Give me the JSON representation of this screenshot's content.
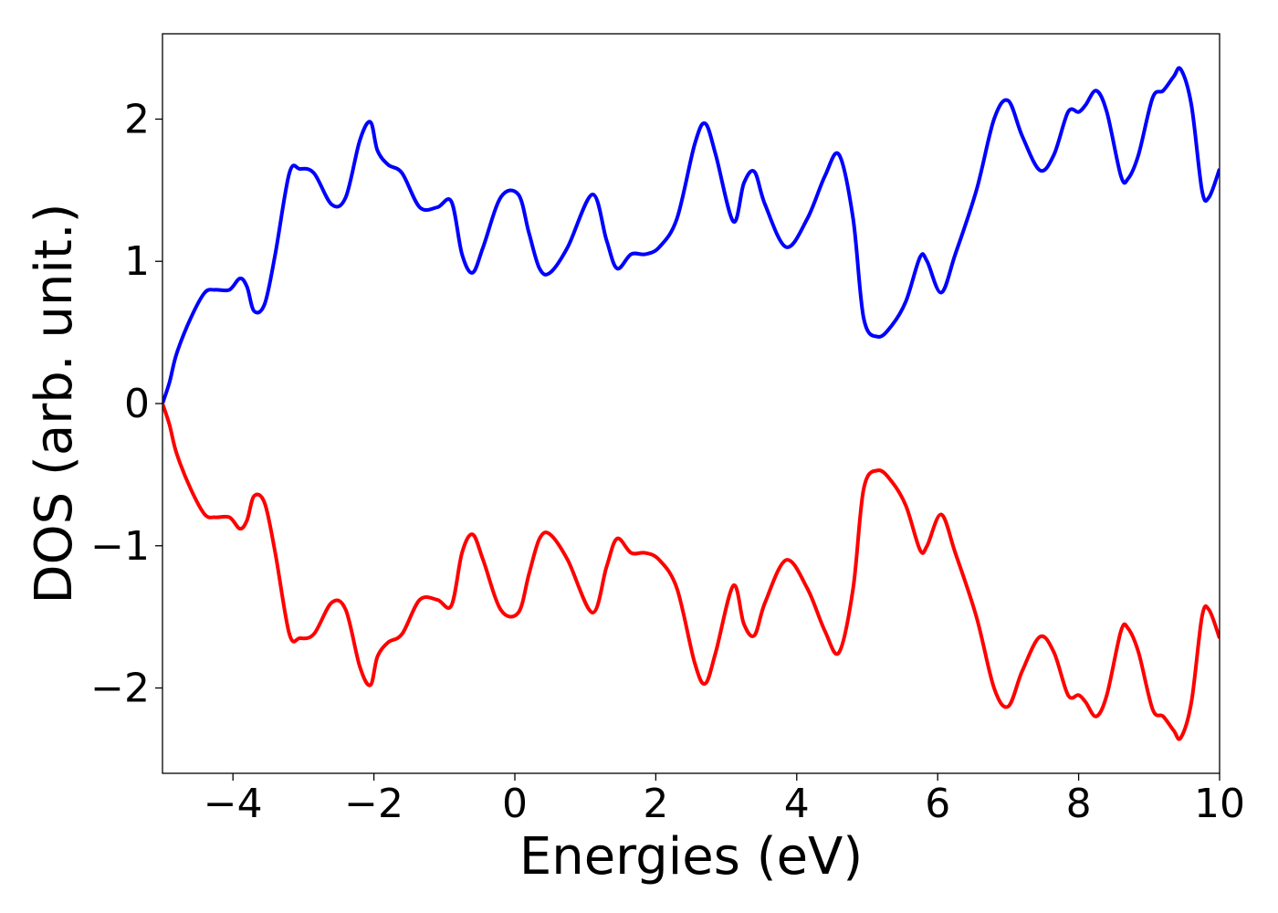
{
  "chart_data": {
    "type": "line",
    "title": "",
    "xlabel": "Energies (eV)",
    "ylabel": "DOS (arb. unit.)",
    "xlim": [
      -5,
      10
    ],
    "ylim": [
      -2.6,
      2.6
    ],
    "x_ticks": [
      -4,
      -2,
      0,
      2,
      4,
      6,
      8,
      10
    ],
    "x_tick_labels": [
      "−4",
      "−2",
      "0",
      "2",
      "4",
      "6",
      "8",
      "10"
    ],
    "y_ticks": [
      -2,
      -1,
      0,
      1,
      2
    ],
    "y_tick_labels": [
      "−2",
      "−1",
      "0",
      "1",
      "2"
    ],
    "grid": false,
    "series": [
      {
        "color": "#0000ff",
        "x": [
          -5.0,
          -4.9,
          -4.8,
          -4.6,
          -4.4,
          -4.25,
          -4.05,
          -3.9,
          -3.8,
          -3.7,
          -3.55,
          -3.4,
          -3.2,
          -3.05,
          -2.85,
          -2.6,
          -2.4,
          -2.2,
          -2.05,
          -1.95,
          -1.8,
          -1.6,
          -1.35,
          -1.1,
          -0.9,
          -0.75,
          -0.6,
          -0.45,
          -0.2,
          0.05,
          0.2,
          0.35,
          0.5,
          0.75,
          1.1,
          1.3,
          1.45,
          1.65,
          1.85,
          2.05,
          2.3,
          2.55,
          2.7,
          2.85,
          3.1,
          3.25,
          3.4,
          3.55,
          3.85,
          4.15,
          4.4,
          4.6,
          4.8,
          4.95,
          5.15,
          5.35,
          5.55,
          5.75,
          5.85,
          6.05,
          6.25,
          6.55,
          6.8,
          7.0,
          7.2,
          7.45,
          7.65,
          7.85,
          8.0,
          8.1,
          8.25,
          8.4,
          8.6,
          8.7,
          8.85,
          9.05,
          9.2,
          9.35,
          9.45,
          9.6,
          9.75,
          9.85,
          10.0
        ],
        "values": [
          0.0,
          0.15,
          0.35,
          0.6,
          0.78,
          0.8,
          0.8,
          0.88,
          0.82,
          0.65,
          0.7,
          1.05,
          1.62,
          1.65,
          1.62,
          1.4,
          1.45,
          1.85,
          1.98,
          1.78,
          1.68,
          1.62,
          1.38,
          1.38,
          1.42,
          1.05,
          0.92,
          1.1,
          1.45,
          1.47,
          1.2,
          0.95,
          0.92,
          1.1,
          1.47,
          1.15,
          0.95,
          1.05,
          1.05,
          1.1,
          1.3,
          1.82,
          1.97,
          1.75,
          1.28,
          1.55,
          1.63,
          1.4,
          1.1,
          1.3,
          1.6,
          1.75,
          1.3,
          0.6,
          0.47,
          0.55,
          0.72,
          1.03,
          1.0,
          0.78,
          1.05,
          1.5,
          2.0,
          2.13,
          1.88,
          1.64,
          1.75,
          2.05,
          2.05,
          2.1,
          2.2,
          2.05,
          1.6,
          1.58,
          1.75,
          2.15,
          2.2,
          2.3,
          2.35,
          2.1,
          1.5,
          1.45,
          1.65
        ]
      },
      {
        "color": "#ff0000",
        "x": [
          -5.0,
          -4.9,
          -4.8,
          -4.6,
          -4.4,
          -4.25,
          -4.05,
          -3.9,
          -3.8,
          -3.7,
          -3.55,
          -3.4,
          -3.2,
          -3.05,
          -2.85,
          -2.6,
          -2.4,
          -2.2,
          -2.05,
          -1.95,
          -1.8,
          -1.6,
          -1.35,
          -1.1,
          -0.9,
          -0.75,
          -0.6,
          -0.45,
          -0.2,
          0.05,
          0.2,
          0.35,
          0.5,
          0.75,
          1.1,
          1.3,
          1.45,
          1.65,
          1.85,
          2.05,
          2.3,
          2.55,
          2.7,
          2.85,
          3.1,
          3.25,
          3.4,
          3.55,
          3.85,
          4.15,
          4.4,
          4.6,
          4.8,
          4.95,
          5.15,
          5.35,
          5.55,
          5.75,
          5.85,
          6.05,
          6.25,
          6.55,
          6.8,
          7.0,
          7.2,
          7.45,
          7.65,
          7.85,
          8.0,
          8.1,
          8.25,
          8.4,
          8.6,
          8.7,
          8.85,
          9.05,
          9.2,
          9.35,
          9.45,
          9.6,
          9.75,
          9.85,
          10.0
        ],
        "values": [
          0.0,
          -0.15,
          -0.35,
          -0.6,
          -0.78,
          -0.8,
          -0.8,
          -0.88,
          -0.82,
          -0.65,
          -0.7,
          -1.05,
          -1.62,
          -1.65,
          -1.62,
          -1.4,
          -1.45,
          -1.85,
          -1.98,
          -1.78,
          -1.68,
          -1.62,
          -1.38,
          -1.38,
          -1.42,
          -1.05,
          -0.92,
          -1.1,
          -1.45,
          -1.47,
          -1.2,
          -0.95,
          -0.92,
          -1.1,
          -1.47,
          -1.15,
          -0.95,
          -1.05,
          -1.05,
          -1.1,
          -1.3,
          -1.82,
          -1.97,
          -1.75,
          -1.28,
          -1.55,
          -1.63,
          -1.4,
          -1.1,
          -1.3,
          -1.6,
          -1.75,
          -1.3,
          -0.6,
          -0.47,
          -0.55,
          -0.72,
          -1.03,
          -1.0,
          -0.78,
          -1.05,
          -1.5,
          -2.0,
          -2.13,
          -1.88,
          -1.64,
          -1.75,
          -2.05,
          -2.05,
          -2.1,
          -2.2,
          -2.05,
          -1.6,
          -1.58,
          -1.75,
          -2.15,
          -2.2,
          -2.3,
          -2.35,
          -2.1,
          -1.5,
          -1.45,
          -1.65
        ]
      }
    ]
  }
}
